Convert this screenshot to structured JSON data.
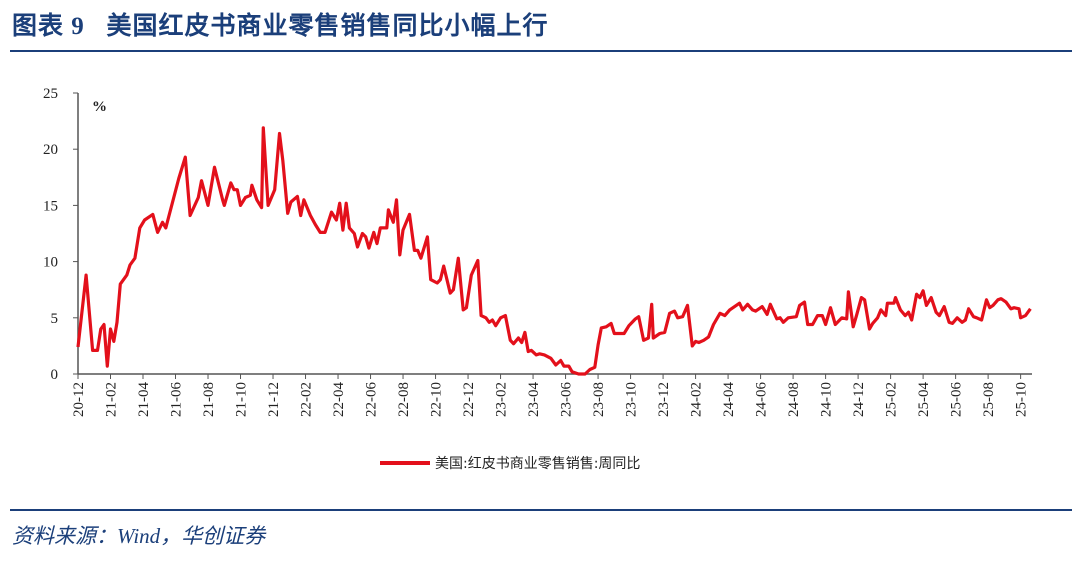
{
  "title": "图表 9   美国红皮书商业零售销售同比小幅上行",
  "source": "资料来源：Wind，华创证券",
  "colors": {
    "line": "#e3101b",
    "title": "#1b3f7a",
    "axis": "#555555"
  },
  "chart_data": {
    "type": "line",
    "title": "美国红皮书商业零售销售同比小幅上行",
    "ylabel": "%",
    "xlabel": "",
    "ylim": [
      0,
      25
    ],
    "yticks": [
      0,
      5,
      10,
      15,
      20,
      25
    ],
    "xlim_months_since_2020_12": [
      0,
      58.7
    ],
    "xtick_labels": [
      "20-12",
      "21-02",
      "21-04",
      "21-06",
      "21-08",
      "21-10",
      "21-12",
      "22-02",
      "22-04",
      "22-06",
      "22-08",
      "22-10",
      "22-12",
      "23-02",
      "23-04",
      "23-06",
      "23-08",
      "23-10",
      "23-12",
      "24-02",
      "24-04",
      "24-06",
      "24-08",
      "24-10",
      "24-12",
      "25-02",
      "25-04",
      "25-06",
      "25-08",
      "25-10"
    ],
    "legend": "top-bottom-center",
    "series": [
      {
        "name": "美国:红皮书商业零售销售:周同比",
        "x": [
          0,
          0.5,
          0.9,
          1.2,
          1.4,
          1.6,
          1.8,
          2.0,
          2.2,
          2.4,
          2.6,
          3.0,
          3.2,
          3.5,
          3.8,
          4.1,
          4.6,
          4.9,
          5.2,
          5.4,
          6.2,
          6.6,
          6.9,
          7.4,
          7.6,
          8.0,
          8.4,
          8.9,
          9.0,
          9.4,
          9.6,
          9.8,
          10.0,
          10.3,
          10.6,
          10.7,
          11.0,
          11.3,
          11.4,
          11.7,
          12.1,
          12.4,
          12.6,
          12.9,
          13.1,
          13.5,
          13.7,
          13.9,
          14.3,
          14.6,
          14.9,
          15.2,
          15.6,
          15.9,
          16.1,
          16.3,
          16.5,
          16.7,
          17.0,
          17.2,
          17.5,
          17.7,
          17.9,
          18.2,
          18.4,
          18.6,
          19.0,
          19.1,
          19.4,
          19.6,
          19.8,
          20.0,
          20.4,
          20.7,
          20.9,
          21.1,
          21.5,
          21.7,
          22.1,
          22.3,
          22.5,
          22.9,
          23.1,
          23.4,
          23.7,
          23.9,
          24.2,
          24.6,
          24.8,
          25.1,
          25.3,
          25.5,
          25.7,
          26.0,
          26.3,
          26.6,
          26.8,
          27.1,
          27.3,
          27.5,
          27.7,
          27.9,
          28.2,
          28.4,
          28.7,
          29.1,
          29.4,
          29.7,
          29.9,
          30.2,
          30.4,
          30.8,
          31.2,
          31.5,
          31.8,
          32.0,
          32.2,
          32.5,
          32.8,
          33.0,
          33.4,
          33.6,
          33.9,
          34.3,
          34.5,
          34.8,
          35.1,
          35.3,
          35.4,
          35.8,
          36.1,
          36.4,
          36.7,
          36.9,
          37.2,
          37.5,
          37.8,
          38.0,
          38.2,
          38.5,
          38.8,
          39.1,
          39.5,
          39.8,
          40.1,
          40.4,
          40.7,
          40.9,
          41.2,
          41.5,
          41.7,
          42.1,
          42.4,
          42.6,
          43.0,
          43.2,
          43.4,
          43.7,
          44.2,
          44.4,
          44.7,
          44.9,
          45.2,
          45.5,
          45.8,
          46.0,
          46.3,
          46.6,
          47.0,
          47.3,
          47.4,
          47.7,
          47.9,
          48.2,
          48.4,
          48.7,
          48.9,
          49.2,
          49.4,
          49.7,
          49.8,
          50.2,
          50.3,
          50.6,
          50.9,
          51.1,
          51.3,
          51.6,
          51.8,
          52.0,
          52.2,
          52.5,
          52.8,
          53.0,
          53.3,
          53.6,
          53.8,
          54.1,
          54.4,
          54.6,
          54.8,
          55.1,
          55.3,
          55.6,
          55.9,
          56.1,
          56.3,
          56.6,
          56.8,
          57.1,
          57.4,
          57.6,
          57.9,
          58.0,
          58.3,
          58.6
        ],
        "values": [
          2.4,
          8.8,
          2.1,
          2.1,
          4.0,
          4.4,
          0.7,
          4.0,
          2.9,
          4.6,
          8.0,
          8.8,
          9.7,
          10.3,
          13.0,
          13.7,
          14.2,
          12.6,
          13.5,
          13.0,
          17.4,
          19.3,
          14.1,
          15.7,
          17.2,
          15.0,
          18.4,
          15.5,
          15.0,
          17.0,
          16.4,
          16.4,
          15.0,
          15.7,
          15.9,
          16.8,
          15.5,
          14.8,
          21.9,
          15.0,
          16.4,
          21.4,
          19.0,
          14.3,
          15.3,
          15.8,
          14.1,
          15.5,
          14.1,
          13.3,
          12.6,
          12.6,
          14.4,
          13.7,
          15.2,
          12.8,
          15.2,
          13.0,
          12.5,
          11.3,
          12.5,
          12.2,
          11.2,
          12.6,
          11.6,
          13.0,
          13.0,
          14.6,
          13.5,
          15.5,
          10.6,
          12.8,
          14.2,
          11.0,
          11.0,
          10.3,
          12.2,
          8.4,
          8.1,
          8.4,
          9.6,
          7.2,
          7.5,
          10.3,
          5.7,
          5.9,
          8.8,
          10.1,
          5.2,
          5.0,
          4.6,
          4.8,
          4.3,
          5.0,
          5.2,
          3.0,
          2.7,
          3.2,
          2.8,
          3.7,
          2.0,
          2.1,
          1.7,
          1.8,
          1.7,
          1.4,
          0.8,
          1.2,
          0.7,
          0.7,
          0.2,
          0,
          0,
          0.4,
          0.6,
          2.6,
          4.1,
          4.2,
          4.5,
          3.6,
          3.6,
          3.6,
          4.3,
          4.9,
          5.1,
          3.0,
          3.2,
          6.2,
          3.2,
          3.6,
          3.7,
          5.4,
          5.6,
          5.0,
          5.1,
          6.1,
          2.5,
          2.9,
          2.8,
          3.0,
          3.3,
          4.4,
          5.4,
          5.2,
          5.7,
          6.0,
          6.3,
          5.7,
          6.2,
          5.7,
          5.6,
          6.0,
          5.3,
          6.2,
          4.9,
          5.0,
          4.6,
          5.0,
          5.1,
          6.1,
          6.4,
          4.4,
          4.4,
          5.2,
          5.2,
          4.4,
          5.9,
          4.4,
          5.0,
          4.9,
          7.3,
          4.2,
          5.2,
          6.8,
          6.6,
          4.0,
          4.5,
          5.0,
          5.7,
          5.2,
          6.3,
          6.3,
          6.8,
          5.7,
          5.2,
          5.5,
          4.8,
          7.1,
          6.8,
          7.4,
          6.1,
          6.8,
          5.5,
          5.2,
          6.0,
          4.6,
          4.5,
          5.0,
          4.6,
          4.8,
          5.8,
          5.1,
          5.0,
          4.8,
          6.6,
          5.9,
          6.1,
          6.6,
          6.7,
          6.4,
          5.8,
          5.9,
          5.8,
          5.0,
          5.2,
          5.8
        ]
      }
    ]
  }
}
